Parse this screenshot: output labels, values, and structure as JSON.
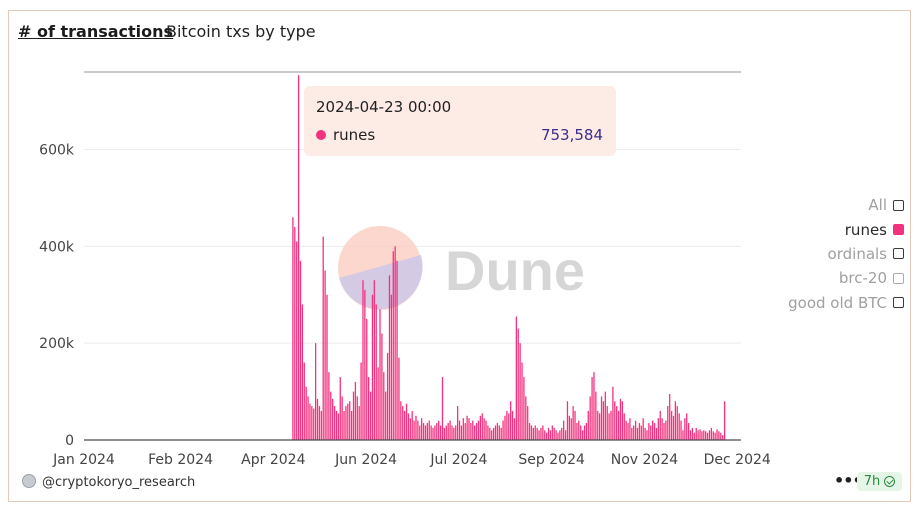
{
  "header": {
    "title": "# of transactions",
    "subtitle": "Bitcoin txs by type"
  },
  "watermark": {
    "text": "Dune"
  },
  "legend": {
    "items": [
      {
        "label": "All",
        "state": "unchecked"
      },
      {
        "label": "runes",
        "state": "checked",
        "color": "#f3317e"
      },
      {
        "label": "ordinals",
        "state": "unchecked"
      },
      {
        "label": "brc-20",
        "state": "unchecked-faint"
      },
      {
        "label": "good old BTC",
        "state": "unchecked"
      }
    ]
  },
  "tooltip": {
    "date": "2024-04-23 00:00",
    "series": "runes",
    "value": "753,584",
    "color": "#f3317e"
  },
  "footer": {
    "author": "@cryptokoryo_research",
    "more": "•••",
    "age": "7h"
  },
  "chart_data": {
    "type": "bar",
    "series_name": "runes",
    "color": "#f3317e",
    "x_start": "2024-01-01",
    "x_end": "2024-12-13",
    "ylim": [
      0,
      760000
    ],
    "y_ticks": [
      0,
      200000,
      400000,
      600000
    ],
    "y_tick_labels": [
      "0",
      "200k",
      "400k",
      "600k"
    ],
    "x_tick_labels": [
      "Jan 2024",
      "Feb 2024",
      "Apr 2024",
      "Jun 2024",
      "Jul 2024",
      "Sep 2024",
      "Nov 2024",
      "Dec 2024"
    ],
    "x_tick_dates": [
      "2024-01-01",
      "2024-02-21",
      "2024-04-10",
      "2024-05-29",
      "2024-07-17",
      "2024-09-04",
      "2024-10-23",
      "2024-12-11"
    ],
    "first_date": "2024-04-20",
    "values": [
      460000,
      440000,
      410000,
      753584,
      370000,
      280000,
      160000,
      110000,
      90000,
      75000,
      70000,
      65000,
      200000,
      85000,
      70000,
      60000,
      420000,
      350000,
      300000,
      140000,
      100000,
      85000,
      70000,
      60000,
      55000,
      130000,
      90000,
      60000,
      70000,
      75000,
      80000,
      60000,
      100000,
      120000,
      90000,
      70000,
      160000,
      330000,
      310000,
      250000,
      130000,
      100000,
      300000,
      330000,
      280000,
      150000,
      270000,
      220000,
      140000,
      100000,
      180000,
      340000,
      300000,
      390000,
      400000,
      370000,
      170000,
      80000,
      70000,
      60000,
      75000,
      55000,
      45000,
      60000,
      40000,
      50000,
      40000,
      30000,
      45000,
      35000,
      30000,
      35000,
      40000,
      30000,
      25000,
      30000,
      35000,
      40000,
      30000,
      130000,
      25000,
      30000,
      35000,
      40000,
      30000,
      25000,
      30000,
      70000,
      40000,
      30000,
      45000,
      35000,
      50000,
      45000,
      35000,
      40000,
      30000,
      35000,
      40000,
      50000,
      55000,
      45000,
      40000,
      30000,
      25000,
      20000,
      25000,
      30000,
      35000,
      30000,
      25000,
      40000,
      50000,
      60000,
      55000,
      80000,
      60000,
      45000,
      255000,
      230000,
      200000,
      160000,
      130000,
      90000,
      70000,
      35000,
      30000,
      25000,
      30000,
      25000,
      20000,
      25000,
      30000,
      20000,
      15000,
      25000,
      20000,
      30000,
      25000,
      20000,
      15000,
      20000,
      25000,
      40000,
      20000,
      80000,
      50000,
      45000,
      70000,
      60000,
      35000,
      40000,
      30000,
      20000,
      30000,
      35000,
      60000,
      90000,
      130000,
      140000,
      100000,
      60000,
      55000,
      90000,
      80000,
      100000,
      70000,
      55000,
      60000,
      110000,
      80000,
      70000,
      60000,
      85000,
      80000,
      55000,
      40000,
      35000,
      45000,
      25000,
      30000,
      40000,
      25000,
      35000,
      30000,
      45000,
      25000,
      20000,
      35000,
      30000,
      40000,
      35000,
      25000,
      45000,
      60000,
      45000,
      35000,
      40000,
      70000,
      95000,
      60000,
      50000,
      80000,
      70000,
      55000,
      40000,
      20000,
      45000,
      55000,
      35000,
      20000,
      25000,
      15000,
      25000,
      20000,
      22000,
      18000,
      20000,
      18000,
      15000,
      20000,
      25000,
      18000,
      15000,
      22000,
      18000,
      15000,
      10000,
      80000
    ]
  }
}
